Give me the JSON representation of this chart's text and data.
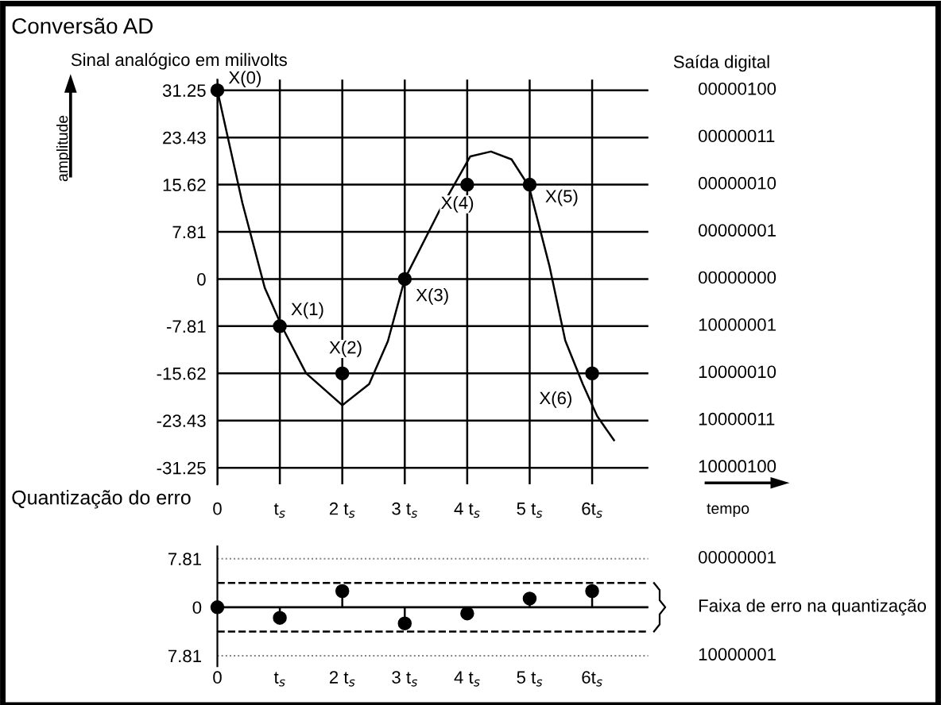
{
  "chart_data": [
    {
      "type": "line",
      "title": "Conversão AD",
      "subtitle": "Sinal analógico em milivolts",
      "ylabel": "amplitude",
      "y2label": "Saída digital",
      "xlabel": "tempo",
      "xlim": [
        0,
        6.9
      ],
      "xticks": [
        0,
        {
          "value": 1,
          "label": "t$_{s}$"
        },
        {
          "value": 2,
          "label": "2 t$_{s}$"
        },
        {
          "value": 3,
          "label": "3 t$_{s}$"
        },
        {
          "value": 4,
          "label": "4 t$_{s}$"
        },
        {
          "value": 5,
          "label": "5 t$_{s}$"
        },
        {
          "value": 6,
          "label": "6t$_{s}$"
        }
      ],
      "ylim": [
        -34,
        33
      ],
      "yticks": [
        31.25,
        23.43,
        15.62,
        7.81,
        0,
        -7.81,
        -15.62,
        -23.43,
        -31.25
      ],
      "grid": true,
      "series": [
        {
          "type": "line",
          "color": "#000000",
          "marker": "none",
          "x": [
            0,
            0.4,
            0.76,
            1.03,
            1.42,
            2.0,
            2.43,
            2.73,
            3.0,
            3.54,
            4.05,
            4.38,
            4.71,
            4.99,
            5.32,
            5.57,
            5.85,
            6.08,
            6.35
          ],
          "values": [
            31.25,
            12.6,
            -1.5,
            -7.8,
            -15.6,
            -20.9,
            -17.4,
            -10.3,
            0,
            11,
            20.3,
            21.1,
            19.8,
            15.3,
            2,
            -10.2,
            -17.4,
            -22.7,
            -26.7
          ]
        },
        {
          "type": "scatter",
          "color": "#000000",
          "marker": "circle",
          "x": [
            0,
            1,
            2,
            3,
            4,
            5,
            6
          ],
          "values": [
            31.25,
            -7.81,
            -15.62,
            0,
            15.62,
            15.62,
            -15.62
          ]
        }
      ],
      "annotations": [
        {
          "text": "X(0)",
          "x": 0,
          "y": 31.25
        },
        {
          "text": "X(1)",
          "x": 1,
          "y": -7.81
        },
        {
          "text": "X(2)",
          "x": 2,
          "y": -15.62
        },
        {
          "text": "X(3)",
          "x": 3,
          "y": 0
        },
        {
          "text": "X(4)",
          "x": 4,
          "y": 15.62
        },
        {
          "text": "X(5)",
          "x": 5,
          "y": 15.62
        },
        {
          "text": "X(6)",
          "x": 6,
          "y": -15.62
        },
        "00000100",
        "00000011",
        "00000010",
        "00000001",
        "00000000",
        "10000001",
        "10000010",
        "10000011",
        "10000100"
      ]
    },
    {
      "type": "lollipop",
      "title": "Quantização do erro",
      "x": [
        0,
        1,
        2,
        3,
        4,
        5,
        6
      ],
      "values": [
        0,
        -1.7,
        2.6,
        -2.6,
        -1.0,
        1.4,
        2.6
      ],
      "color": "#000000",
      "marker": "circle",
      "xlim": [
        0,
        6.9
      ],
      "xticks": [
        0,
        {
          "value": 1,
          "label": "t$_{s}$"
        },
        {
          "value": 2,
          "label": "2 t$_{s}$"
        },
        {
          "value": 3,
          "label": "3 t$_{s}$"
        },
        {
          "value": 4,
          "label": "4 t$_{s}$"
        },
        {
          "value": 5,
          "label": "5 t$_{s}$"
        },
        {
          "value": 6,
          "label": "6t$_{s}$"
        }
      ],
      "ylim": [
        -9.5,
        9.8
      ],
      "yticks": [
        7.81,
        0,
        {
          "value": -7.81,
          "label": "7.81"
        }
      ],
      "grid": "y",
      "ref_lines": [
        {
          "axis": "y",
          "value": 3.905,
          "line_style": "dashed"
        },
        {
          "axis": "y",
          "value": -3.905,
          "line_style": "dashed"
        }
      ],
      "annotations": [
        "00000001",
        "Faixa de erro na quantização",
        "10000001"
      ]
    }
  ]
}
